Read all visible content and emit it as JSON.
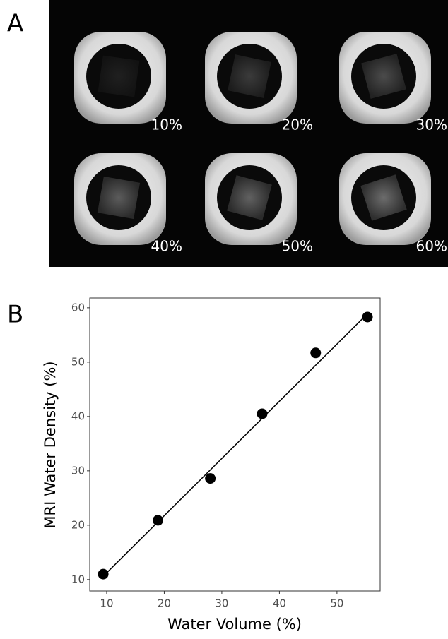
{
  "panel_a": {
    "label": "A",
    "sample_labels": [
      "10%",
      "20%",
      "30%",
      "40%",
      "50%",
      "60%"
    ]
  },
  "chart_data": {
    "type": "scatter",
    "panel_label": "B",
    "x_label": "Water Volume (%)",
    "y_label": "MRI Water Density (%)",
    "x": [
      9.4,
      18.9,
      28.0,
      37.0,
      46.3,
      55.3
    ],
    "values": [
      11.0,
      20.9,
      28.6,
      40.5,
      51.7,
      58.3
    ],
    "color": "#000000",
    "fit": {
      "x": [
        9.4,
        55.3
      ],
      "values": [
        10.6,
        58.9
      ]
    },
    "xlim": [
      7.06,
      57.5
    ],
    "ylim": [
      7.9,
      61.8
    ],
    "xticks": [
      10,
      20,
      30,
      40,
      50
    ],
    "yticks": [
      10,
      20,
      30,
      40,
      50,
      60
    ],
    "grid": false
  }
}
